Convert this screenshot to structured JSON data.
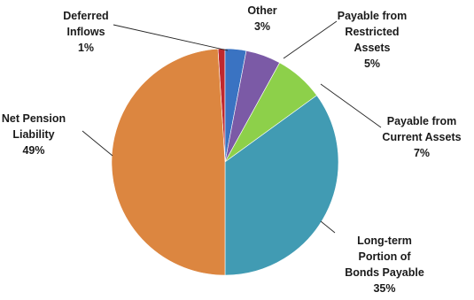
{
  "chart_data": {
    "type": "pie",
    "slices": [
      {
        "lines": [
          "Deferred",
          "Inflows"
        ],
        "pct_label": "1%",
        "value": 1,
        "color": "#c0282d"
      },
      {
        "lines": [
          "Other"
        ],
        "pct_label": "3%",
        "value": 3,
        "color": "#3a73c2"
      },
      {
        "lines": [
          "Payable from",
          "Restricted",
          "Assets"
        ],
        "pct_label": "5%",
        "value": 5,
        "color": "#7b5aa6"
      },
      {
        "lines": [
          "Payable from",
          "Current Assets"
        ],
        "pct_label": "7%",
        "value": 7,
        "color": "#8dd04a"
      },
      {
        "lines": [
          "Long-term",
          "Portion of",
          "Bonds Payable"
        ],
        "pct_label": "35%",
        "value": 35,
        "color": "#419bb3"
      },
      {
        "lines": [
          "Net Pension",
          "Liability"
        ],
        "pct_label": "49%",
        "value": 49,
        "color": "#dc8640"
      }
    ]
  }
}
